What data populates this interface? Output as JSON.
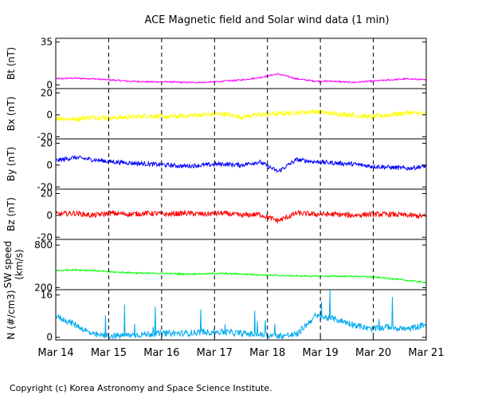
{
  "title": "ACE Magnetic field and Solar wind data (1 min)",
  "copyright": "Copyright (c) Korea Astronomy and Space Science Institute.",
  "chart_data": {
    "type": "line",
    "x": {
      "ticks": [
        "Mar 14",
        "Mar 15",
        "Mar 16",
        "Mar 17",
        "Mar 18",
        "Mar 19",
        "Mar 20",
        "Mar 21"
      ]
    },
    "panels": [
      {
        "name": "bt",
        "ylabel": "Bt (nT)",
        "ylim": [
          -3,
          38
        ],
        "tick_labels": [
          {
            "v": 35,
            "label": "35"
          },
          {
            "v": 0,
            "label": "0"
          }
        ],
        "color": "#ff00ff",
        "series_values": [
          5,
          5.5,
          5,
          4,
          3,
          2.5,
          2.5,
          2,
          2,
          3,
          4,
          6,
          9,
          5,
          3,
          3,
          2,
          3,
          4,
          5,
          4
        ],
        "noise": 0.6
      },
      {
        "name": "bx",
        "ylabel": "Bx (nT)",
        "ylim": [
          -22,
          24
        ],
        "tick_labels": [
          {
            "v": 20,
            "label": "20"
          },
          {
            "v": 0,
            "label": "0"
          },
          {
            "v": -20,
            "label": "-20"
          }
        ],
        "color": "#ffff00",
        "series_values": [
          -3,
          -4,
          -2,
          -3,
          -2,
          -1,
          -2,
          -1,
          0,
          1,
          -2,
          0,
          1,
          2,
          3,
          1,
          0,
          -2,
          0,
          2,
          1
        ],
        "noise": 2.2
      },
      {
        "name": "by",
        "ylabel": "By (nT)",
        "ylim": [
          -22,
          24
        ],
        "tick_labels": [
          {
            "v": 20,
            "label": "20"
          },
          {
            "v": 0,
            "label": "0"
          },
          {
            "v": -20,
            "label": "-20"
          }
        ],
        "color": "#0000ff",
        "series_values": [
          4,
          7,
          5,
          3,
          2,
          1,
          0,
          -1,
          0,
          1,
          0,
          3,
          -6,
          5,
          3,
          2,
          1,
          -1,
          -2,
          -3,
          -1
        ],
        "noise": 2.0
      },
      {
        "name": "bz",
        "ylabel": "Bz (nT)",
        "ylim": [
          -22,
          24
        ],
        "tick_labels": [
          {
            "v": 20,
            "label": "20"
          },
          {
            "v": 0,
            "label": "0"
          },
          {
            "v": -20,
            "label": "-20"
          }
        ],
        "color": "#ff0000",
        "series_values": [
          1,
          2,
          0,
          2,
          1,
          2,
          1,
          2,
          1,
          2,
          0,
          1,
          -5,
          2,
          1,
          1,
          0,
          1,
          1,
          0,
          -1
        ],
        "noise": 2.4
      },
      {
        "name": "speed",
        "ylabel": "SW speed\n(km/s)",
        "ylim": [
          170,
          880
        ],
        "tick_labels": [
          {
            "v": 800,
            "label": "800"
          },
          {
            "v": 200,
            "label": "200"
          }
        ],
        "color": "#00ff00",
        "series_values": [
          440,
          450,
          440,
          420,
          410,
          400,
          400,
          390,
          395,
          400,
          390,
          380,
          370,
          365,
          360,
          360,
          360,
          350,
          330,
          300,
          270
        ],
        "noise": 10
      },
      {
        "name": "density",
        "ylabel": "N (#/cm3)",
        "ylim": [
          -1,
          18
        ],
        "tick_labels": [
          {
            "v": 16,
            "label": "16"
          },
          {
            "v": 0,
            "label": "0"
          }
        ],
        "color": "#00aaee",
        "series_values": [
          8,
          5,
          1,
          0.5,
          0.8,
          1.2,
          1.5,
          1.5,
          2,
          2,
          1.5,
          1,
          0.5,
          1,
          8,
          7,
          5,
          3,
          4,
          3,
          5
        ],
        "noise": 1.2
      }
    ]
  }
}
